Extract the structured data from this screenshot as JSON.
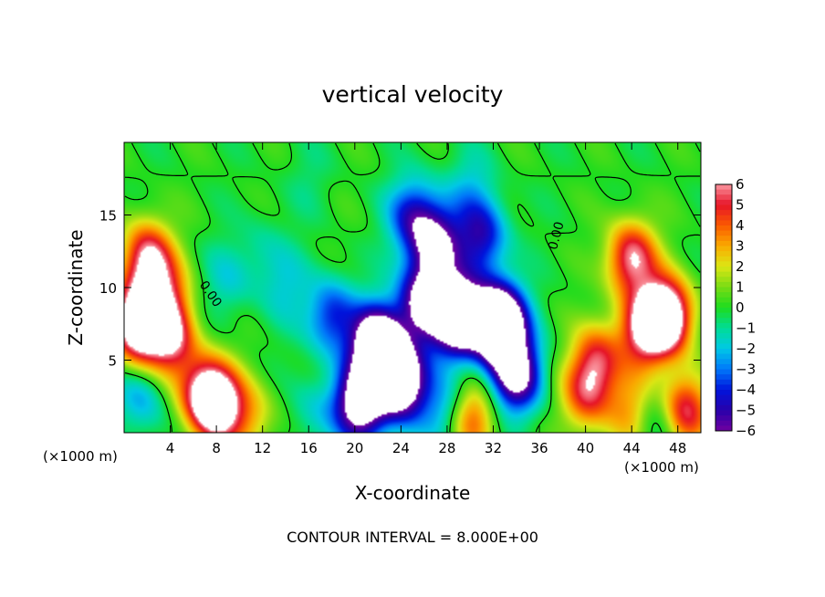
{
  "chart_data": {
    "type": "heatmap",
    "title": "vertical velocity",
    "xlabel": "X-coordinate",
    "ylabel": "Z-coordinate",
    "x_unit_label": "(×1000 m)",
    "x_unit_label_right": "(×1000 m)",
    "xlim": [
      0,
      50
    ],
    "ylim": [
      0,
      20
    ],
    "x_ticks": [
      4,
      8,
      12,
      16,
      20,
      24,
      28,
      32,
      36,
      40,
      44,
      48
    ],
    "x_tick_labels": [
      "4",
      "8",
      "12",
      "16",
      "20",
      "24",
      "28",
      "32",
      "36",
      "40",
      "44",
      "48"
    ],
    "y_ticks": [
      5,
      10,
      15
    ],
    "y_tick_labels": [
      "5",
      "10",
      "15"
    ],
    "colorbar": {
      "range": [
        -6,
        6
      ],
      "ticks": [
        6,
        5,
        4,
        3,
        2,
        1,
        0,
        -1,
        -2,
        -3,
        -4,
        -5,
        -6
      ],
      "tick_labels": [
        "6",
        "5",
        "4",
        "3",
        "2",
        "1",
        "0",
        "−1",
        "−2",
        "−3",
        "−4",
        "−5",
        "−6"
      ],
      "out_of_range_color": "#ffffff"
    },
    "contour_labels": [
      {
        "text": "0.00",
        "x": 7.2,
        "z": 9.4
      },
      {
        "text": "0.00",
        "x": 37.8,
        "z": 13.5
      }
    ],
    "features": [
      {
        "x": 2.0,
        "z": 12.0,
        "w": 6.0
      },
      {
        "x": 1.2,
        "z": 7.5,
        "w": 9.0
      },
      {
        "x": 4.0,
        "z": 6.5,
        "w": 5.5
      },
      {
        "x": 8.0,
        "z": 2.0,
        "w": 8.0
      },
      {
        "x": 6.5,
        "z": 3.0,
        "w": 3.5
      },
      {
        "x": 3.5,
        "z": 9.5,
        "w": 3.5
      },
      {
        "x": 1.5,
        "z": 2.5,
        "w": -2.5
      },
      {
        "x": 11.0,
        "z": 1.0,
        "w": 2.5
      },
      {
        "x": 47.0,
        "z": 8.0,
        "w": 9.0
      },
      {
        "x": 44.0,
        "z": 12.0,
        "w": 6.0
      },
      {
        "x": 45.0,
        "z": 7.0,
        "w": 5.0
      },
      {
        "x": 41.0,
        "z": 5.0,
        "w": 4.5
      },
      {
        "x": 40.0,
        "z": 2.5,
        "w": 4.0
      },
      {
        "x": 48.5,
        "z": 1.5,
        "w": 6.0
      },
      {
        "x": 44.0,
        "z": 1.5,
        "w": 3.0
      },
      {
        "x": 46.5,
        "z": 1.0,
        "w": -2.5
      },
      {
        "x": 30.0,
        "z": 1.0,
        "w": 4.5
      },
      {
        "x": 22.0,
        "z": 6.0,
        "w": -10.0
      },
      {
        "x": 26.0,
        "z": 9.0,
        "w": -7.0
      },
      {
        "x": 29.0,
        "z": 8.0,
        "w": -10.0
      },
      {
        "x": 32.5,
        "z": 7.5,
        "w": -12.0
      },
      {
        "x": 27.0,
        "z": 13.0,
        "w": -6.0
      },
      {
        "x": 24.0,
        "z": 3.5,
        "w": -9.0
      },
      {
        "x": 20.5,
        "z": 2.0,
        "w": -8.0
      },
      {
        "x": 34.0,
        "z": 4.0,
        "w": -7.0
      },
      {
        "x": 25.0,
        "z": 15.0,
        "w": -4.0
      },
      {
        "x": 31.0,
        "z": 13.5,
        "w": -4.5
      },
      {
        "x": 18.0,
        "z": 8.0,
        "w": -4.0
      },
      {
        "x": 14.0,
        "z": 10.0,
        "w": -1.5
      },
      {
        "x": 12.0,
        "z": 12.5,
        "w": -1.0
      },
      {
        "x": 30.0,
        "z": 17.0,
        "w": -1.5
      },
      {
        "x": 16.0,
        "z": 17.5,
        "w": -0.6
      },
      {
        "x": 9.0,
        "z": 10.5,
        "w": -1.5
      },
      {
        "x": 28.0,
        "z": 1.5,
        "w": -3.0
      },
      {
        "x": 16.5,
        "z": 1.5,
        "w": -1.5
      }
    ]
  },
  "annotation": {
    "contour_interval": "CONTOUR INTERVAL = 8.000E+00"
  }
}
